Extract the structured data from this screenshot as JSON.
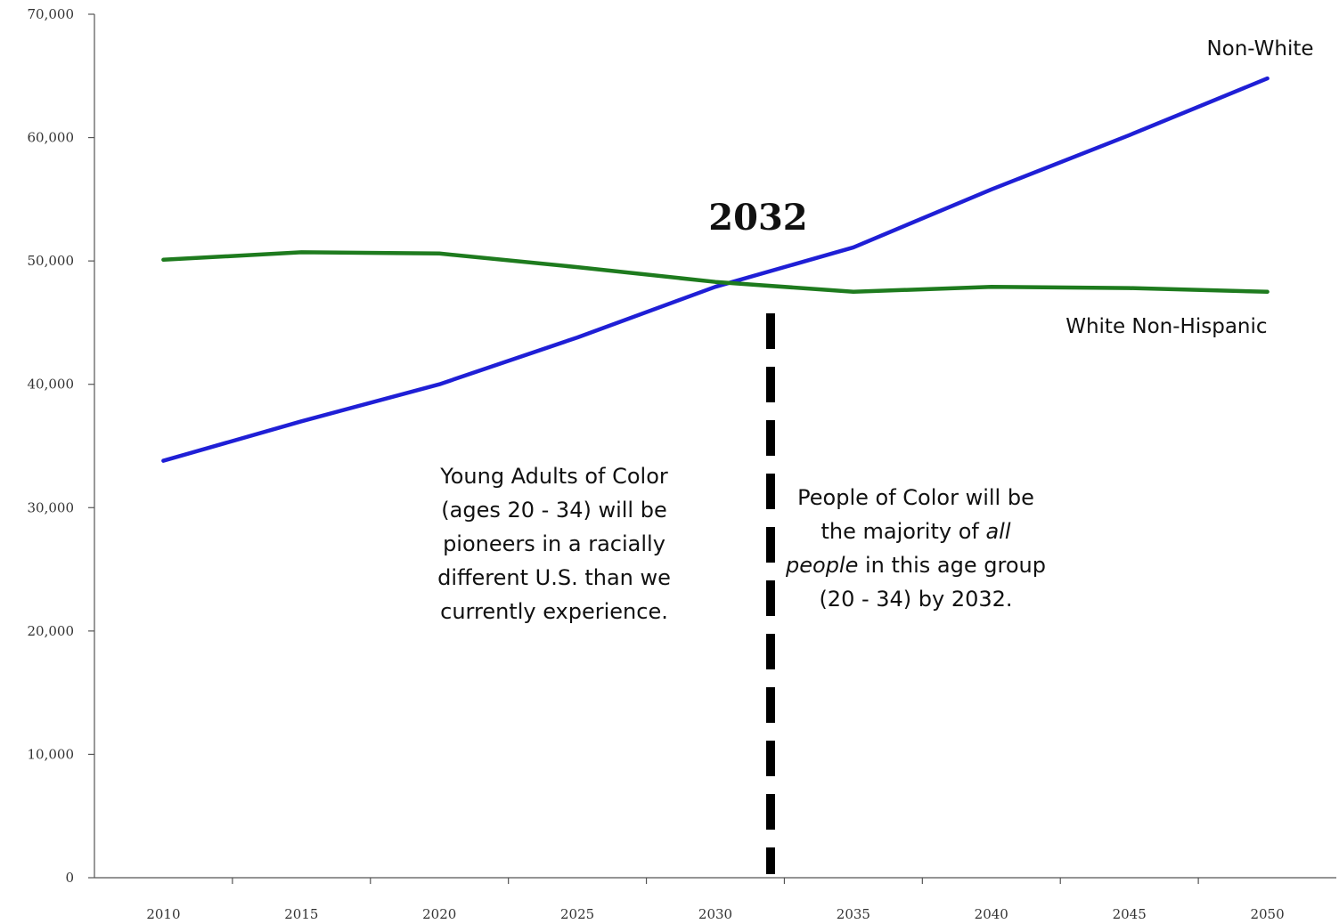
{
  "chart_data": {
    "type": "line",
    "x": [
      2010,
      2015,
      2020,
      2025,
      2030,
      2035,
      2040,
      2045,
      2050
    ],
    "xlim": [
      2007.5,
      2052.5
    ],
    "ylim": [
      0,
      70000
    ],
    "y_ticks": [
      0,
      10000,
      20000,
      30000,
      40000,
      50000,
      60000,
      70000
    ],
    "y_tick_labels": [
      "0",
      "10,000",
      "20,000",
      "30,000",
      "40,000",
      "50,000",
      "60,000",
      "70,000"
    ],
    "x_tick_labels": [
      "2010",
      "2015",
      "2020",
      "2025",
      "2030",
      "2035",
      "2040",
      "2045",
      "2050"
    ],
    "grid": false,
    "legend": "none",
    "series": [
      {
        "name": "Non-White",
        "color": "#1f1fd6",
        "values": [
          33800,
          37000,
          40000,
          43800,
          47900,
          51100,
          55800,
          60200,
          64800
        ]
      },
      {
        "name": "White Non-Hispanic",
        "color": "#1e7b1e",
        "values": [
          50100,
          50700,
          50600,
          49500,
          48300,
          47500,
          47900,
          47800,
          47500
        ]
      }
    ],
    "crossover": {
      "year": 2032,
      "label": "2032"
    },
    "annotations": {
      "left_note": [
        "Young Adults of Color",
        "(ages 20 - 34) will be",
        "pioneers in a racially",
        "different U.S. than we",
        "currently experience."
      ],
      "right_note": {
        "line1": "People of Color will be",
        "line2_prefix": "the majority of ",
        "line2_italic": "all",
        "line3_italic": "people",
        "line3_suffix": " in this age group",
        "line4": "(20 - 34) by 2032."
      }
    }
  }
}
